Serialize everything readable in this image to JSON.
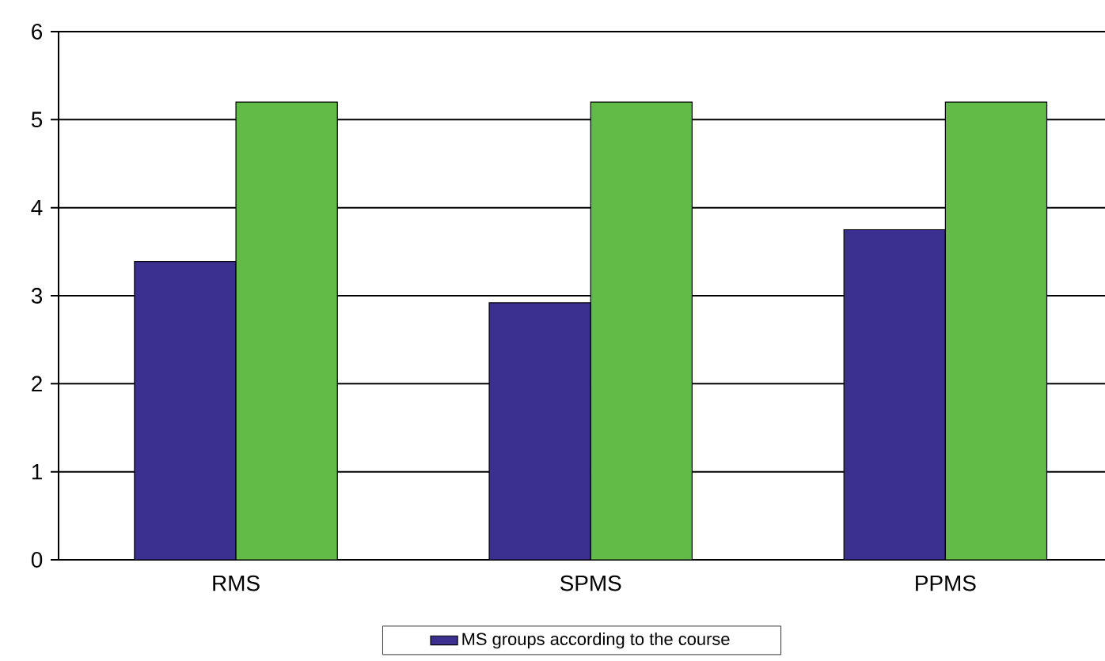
{
  "chart_data": {
    "type": "bar",
    "categories": [
      "RMS",
      "SPMS",
      "PPMS"
    ],
    "series": [
      {
        "name": "MS groups according to the course",
        "color": "#3b2f8f",
        "values": [
          3.39,
          2.92,
          3.75
        ]
      },
      {
        "color": "#62bb46",
        "values": [
          5.2,
          5.2,
          5.2
        ]
      }
    ],
    "ylim": [
      0,
      6
    ],
    "yticks": [
      0,
      1,
      2,
      3,
      4,
      5,
      6
    ],
    "grid": "y",
    "legend": "bottom"
  }
}
